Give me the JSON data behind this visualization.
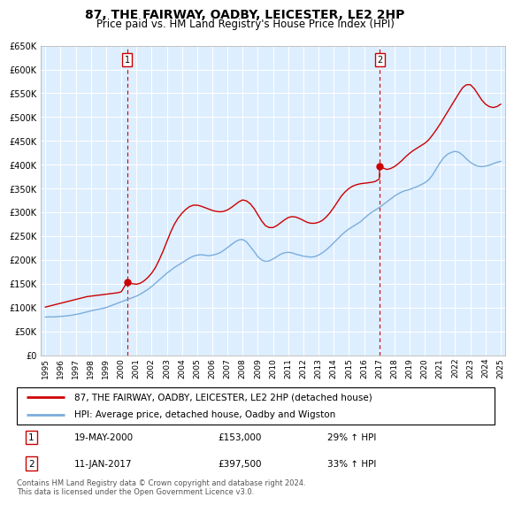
{
  "title": "87, THE FAIRWAY, OADBY, LEICESTER, LE2 2HP",
  "subtitle": "Price paid vs. HM Land Registry's House Price Index (HPI)",
  "legend_line1": "87, THE FAIRWAY, OADBY, LEICESTER, LE2 2HP (detached house)",
  "legend_line2": "HPI: Average price, detached house, Oadby and Wigston",
  "annotation1_date": "19-MAY-2000",
  "annotation1_price": "£153,000",
  "annotation1_hpi": "29% ↑ HPI",
  "annotation1_year": 2000.38,
  "annotation1_value": 153000,
  "annotation2_date": "11-JAN-2017",
  "annotation2_price": "£397,500",
  "annotation2_hpi": "33% ↑ HPI",
  "annotation2_year": 2017.03,
  "annotation2_value": 397500,
  "ylim": [
    0,
    650000
  ],
  "yticks": [
    0,
    50000,
    100000,
    150000,
    200000,
    250000,
    300000,
    350000,
    400000,
    450000,
    500000,
    550000,
    600000,
    650000
  ],
  "xlim_start": 1994.7,
  "xlim_end": 2025.3,
  "property_color": "#cc0000",
  "hpi_color": "#7aaddc",
  "background_color": "#ddeeff",
  "footer": "Contains HM Land Registry data © Crown copyright and database right 2024.\nThis data is licensed under the Open Government Licence v3.0.",
  "hpi_data": [
    [
      1995,
      80000
    ],
    [
      1995.25,
      80500
    ],
    [
      1995.5,
      80200
    ],
    [
      1995.75,
      80800
    ],
    [
      1996,
      81500
    ],
    [
      1996.25,
      82000
    ],
    [
      1996.5,
      83000
    ],
    [
      1996.75,
      84000
    ],
    [
      1997,
      85500
    ],
    [
      1997.25,
      87000
    ],
    [
      1997.5,
      89000
    ],
    [
      1997.75,
      91000
    ],
    [
      1998,
      93000
    ],
    [
      1998.25,
      95000
    ],
    [
      1998.5,
      96500
    ],
    [
      1998.75,
      98000
    ],
    [
      1999,
      100000
    ],
    [
      1999.25,
      103000
    ],
    [
      1999.5,
      106000
    ],
    [
      1999.75,
      109000
    ],
    [
      2000,
      112000
    ],
    [
      2000.25,
      115000
    ],
    [
      2000.5,
      118000
    ],
    [
      2000.75,
      121000
    ],
    [
      2001,
      124000
    ],
    [
      2001.25,
      128000
    ],
    [
      2001.5,
      133000
    ],
    [
      2001.75,
      138000
    ],
    [
      2002,
      144000
    ],
    [
      2002.25,
      151000
    ],
    [
      2002.5,
      158000
    ],
    [
      2002.75,
      165000
    ],
    [
      2003,
      172000
    ],
    [
      2003.25,
      178000
    ],
    [
      2003.5,
      184000
    ],
    [
      2003.75,
      189000
    ],
    [
      2004,
      194000
    ],
    [
      2004.25,
      199000
    ],
    [
      2004.5,
      204000
    ],
    [
      2004.75,
      208000
    ],
    [
      2005,
      210000
    ],
    [
      2005.25,
      211000
    ],
    [
      2005.5,
      210000
    ],
    [
      2005.75,
      209000
    ],
    [
      2006,
      210000
    ],
    [
      2006.25,
      212000
    ],
    [
      2006.5,
      215000
    ],
    [
      2006.75,
      220000
    ],
    [
      2007,
      226000
    ],
    [
      2007.25,
      232000
    ],
    [
      2007.5,
      238000
    ],
    [
      2007.75,
      242000
    ],
    [
      2008,
      243000
    ],
    [
      2008.25,
      238000
    ],
    [
      2008.5,
      228000
    ],
    [
      2008.75,
      218000
    ],
    [
      2009,
      207000
    ],
    [
      2009.25,
      200000
    ],
    [
      2009.5,
      197000
    ],
    [
      2009.75,
      198000
    ],
    [
      2010,
      202000
    ],
    [
      2010.25,
      207000
    ],
    [
      2010.5,
      212000
    ],
    [
      2010.75,
      215000
    ],
    [
      2011,
      216000
    ],
    [
      2011.25,
      215000
    ],
    [
      2011.5,
      212000
    ],
    [
      2011.75,
      210000
    ],
    [
      2012,
      208000
    ],
    [
      2012.25,
      207000
    ],
    [
      2012.5,
      206000
    ],
    [
      2012.75,
      207000
    ],
    [
      2013,
      210000
    ],
    [
      2013.25,
      215000
    ],
    [
      2013.5,
      221000
    ],
    [
      2013.75,
      228000
    ],
    [
      2014,
      236000
    ],
    [
      2014.25,
      244000
    ],
    [
      2014.5,
      252000
    ],
    [
      2014.75,
      259000
    ],
    [
      2015,
      265000
    ],
    [
      2015.25,
      270000
    ],
    [
      2015.5,
      275000
    ],
    [
      2015.75,
      280000
    ],
    [
      2016,
      287000
    ],
    [
      2016.25,
      294000
    ],
    [
      2016.5,
      300000
    ],
    [
      2016.75,
      305000
    ],
    [
      2017,
      310000
    ],
    [
      2017.25,
      316000
    ],
    [
      2017.5,
      322000
    ],
    [
      2017.75,
      328000
    ],
    [
      2018,
      334000
    ],
    [
      2018.25,
      339000
    ],
    [
      2018.5,
      343000
    ],
    [
      2018.75,
      346000
    ],
    [
      2019,
      348000
    ],
    [
      2019.25,
      351000
    ],
    [
      2019.5,
      354000
    ],
    [
      2019.75,
      358000
    ],
    [
      2020,
      362000
    ],
    [
      2020.25,
      368000
    ],
    [
      2020.5,
      378000
    ],
    [
      2020.75,
      391000
    ],
    [
      2021,
      404000
    ],
    [
      2021.25,
      415000
    ],
    [
      2021.5,
      422000
    ],
    [
      2021.75,
      426000
    ],
    [
      2022,
      428000
    ],
    [
      2022.25,
      426000
    ],
    [
      2022.5,
      420000
    ],
    [
      2022.75,
      412000
    ],
    [
      2023,
      405000
    ],
    [
      2023.25,
      400000
    ],
    [
      2023.5,
      397000
    ],
    [
      2023.75,
      396000
    ],
    [
      2024,
      397000
    ],
    [
      2024.25,
      399000
    ],
    [
      2024.5,
      402000
    ],
    [
      2024.75,
      405000
    ],
    [
      2025,
      407000
    ]
  ],
  "property_data": [
    [
      1995,
      101000
    ],
    [
      1995.25,
      103000
    ],
    [
      1995.5,
      105000
    ],
    [
      1995.75,
      107000
    ],
    [
      1996,
      109000
    ],
    [
      1996.25,
      111000
    ],
    [
      1996.5,
      113000
    ],
    [
      1996.75,
      115000
    ],
    [
      1997,
      117000
    ],
    [
      1997.25,
      119000
    ],
    [
      1997.5,
      121000
    ],
    [
      1997.75,
      123000
    ],
    [
      1998,
      124000
    ],
    [
      1998.25,
      125000
    ],
    [
      1998.5,
      126000
    ],
    [
      1998.75,
      127000
    ],
    [
      1999,
      128000
    ],
    [
      1999.25,
      129000
    ],
    [
      1999.5,
      130000
    ],
    [
      1999.75,
      131000
    ],
    [
      2000,
      133000
    ],
    [
      2000.38,
      153000
    ],
    [
      2000.5,
      152000
    ],
    [
      2000.75,
      150000
    ],
    [
      2001,
      149000
    ],
    [
      2001.25,
      151000
    ],
    [
      2001.5,
      156000
    ],
    [
      2001.75,
      163000
    ],
    [
      2002,
      172000
    ],
    [
      2002.25,
      184000
    ],
    [
      2002.5,
      200000
    ],
    [
      2002.75,
      218000
    ],
    [
      2003,
      238000
    ],
    [
      2003.25,
      258000
    ],
    [
      2003.5,
      275000
    ],
    [
      2003.75,
      288000
    ],
    [
      2004,
      298000
    ],
    [
      2004.25,
      306000
    ],
    [
      2004.5,
      312000
    ],
    [
      2004.75,
      315000
    ],
    [
      2005,
      315000
    ],
    [
      2005.25,
      313000
    ],
    [
      2005.5,
      310000
    ],
    [
      2005.75,
      307000
    ],
    [
      2006,
      304000
    ],
    [
      2006.25,
      302000
    ],
    [
      2006.5,
      301000
    ],
    [
      2006.75,
      302000
    ],
    [
      2007,
      305000
    ],
    [
      2007.25,
      310000
    ],
    [
      2007.5,
      316000
    ],
    [
      2007.75,
      322000
    ],
    [
      2008,
      326000
    ],
    [
      2008.25,
      324000
    ],
    [
      2008.5,
      318000
    ],
    [
      2008.75,
      308000
    ],
    [
      2009,
      295000
    ],
    [
      2009.25,
      282000
    ],
    [
      2009.5,
      272000
    ],
    [
      2009.75,
      268000
    ],
    [
      2010,
      268000
    ],
    [
      2010.25,
      272000
    ],
    [
      2010.5,
      278000
    ],
    [
      2010.75,
      284000
    ],
    [
      2011,
      289000
    ],
    [
      2011.25,
      291000
    ],
    [
      2011.5,
      290000
    ],
    [
      2011.75,
      287000
    ],
    [
      2012,
      283000
    ],
    [
      2012.25,
      279000
    ],
    [
      2012.5,
      277000
    ],
    [
      2012.75,
      277000
    ],
    [
      2013,
      279000
    ],
    [
      2013.25,
      283000
    ],
    [
      2013.5,
      290000
    ],
    [
      2013.75,
      299000
    ],
    [
      2014,
      310000
    ],
    [
      2014.25,
      322000
    ],
    [
      2014.5,
      334000
    ],
    [
      2014.75,
      343000
    ],
    [
      2015,
      350000
    ],
    [
      2015.25,
      355000
    ],
    [
      2015.5,
      358000
    ],
    [
      2015.75,
      360000
    ],
    [
      2016,
      361000
    ],
    [
      2016.25,
      362000
    ],
    [
      2016.5,
      363000
    ],
    [
      2016.75,
      365000
    ],
    [
      2017,
      370000
    ],
    [
      2017.03,
      397500
    ],
    [
      2017.25,
      393000
    ],
    [
      2017.5,
      390000
    ],
    [
      2017.75,
      392000
    ],
    [
      2018,
      396000
    ],
    [
      2018.25,
      402000
    ],
    [
      2018.5,
      409000
    ],
    [
      2018.75,
      417000
    ],
    [
      2019,
      424000
    ],
    [
      2019.25,
      430000
    ],
    [
      2019.5,
      435000
    ],
    [
      2019.75,
      440000
    ],
    [
      2020,
      445000
    ],
    [
      2020.25,
      452000
    ],
    [
      2020.5,
      462000
    ],
    [
      2020.75,
      473000
    ],
    [
      2021,
      485000
    ],
    [
      2021.25,
      498000
    ],
    [
      2021.5,
      511000
    ],
    [
      2021.75,
      524000
    ],
    [
      2022,
      537000
    ],
    [
      2022.25,
      550000
    ],
    [
      2022.5,
      562000
    ],
    [
      2022.75,
      568000
    ],
    [
      2023,
      568000
    ],
    [
      2023.25,
      560000
    ],
    [
      2023.5,
      548000
    ],
    [
      2023.75,
      536000
    ],
    [
      2024,
      527000
    ],
    [
      2024.25,
      522000
    ],
    [
      2024.5,
      520000
    ],
    [
      2024.75,
      522000
    ],
    [
      2025,
      527000
    ]
  ]
}
